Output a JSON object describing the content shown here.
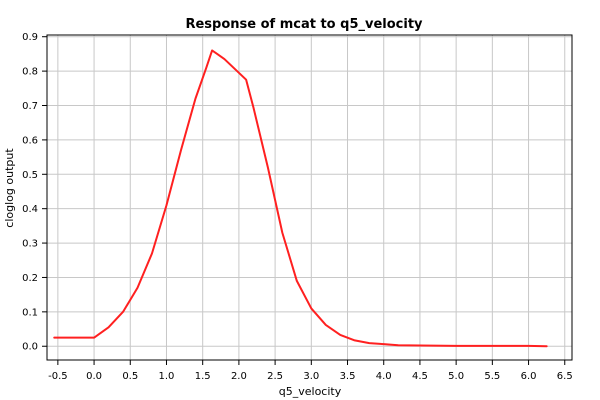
{
  "chart_data": {
    "type": "line",
    "title": "Response of mcat to q5_velocity",
    "xlabel": "q5_velocity",
    "ylabel": "cloglog output",
    "xlim": [
      -0.65,
      6.6
    ],
    "ylim": [
      -0.04,
      0.905
    ],
    "xticks": [
      -0.5,
      0.0,
      0.5,
      1.0,
      1.5,
      2.0,
      2.5,
      3.0,
      3.5,
      4.0,
      4.5,
      5.0,
      5.5,
      6.0,
      6.5
    ],
    "yticks": [
      0.0,
      0.1,
      0.2,
      0.3,
      0.4,
      0.5,
      0.6,
      0.7,
      0.8,
      0.9
    ],
    "grid": true,
    "colors": {
      "line": "#ff2020",
      "grid": "#c8c8c8",
      "axis": "#000000"
    },
    "series": [
      {
        "x": [
          -0.55,
          -0.2,
          0.0,
          0.2,
          0.4,
          0.6,
          0.8,
          1.0,
          1.2,
          1.4,
          1.55,
          1.63,
          1.7,
          1.8,
          1.9,
          2.0,
          2.1,
          2.2,
          2.4,
          2.6,
          2.8,
          3.0,
          3.2,
          3.4,
          3.6,
          3.8,
          4.0,
          4.2,
          4.5,
          5.0,
          5.5,
          6.0,
          6.25
        ],
        "y": [
          0.025,
          0.025,
          0.025,
          0.055,
          0.1,
          0.17,
          0.27,
          0.41,
          0.57,
          0.72,
          0.81,
          0.86,
          0.85,
          0.835,
          0.815,
          0.795,
          0.775,
          0.695,
          0.52,
          0.33,
          0.19,
          0.11,
          0.062,
          0.033,
          0.017,
          0.009,
          0.006,
          0.003,
          0.002,
          0.001,
          0.001,
          0.001,
          0.0
        ]
      }
    ]
  }
}
